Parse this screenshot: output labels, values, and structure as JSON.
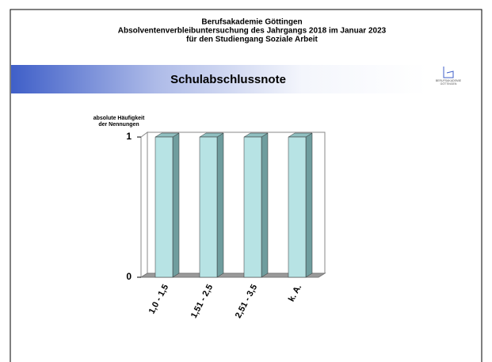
{
  "chart_data": {
    "type": "bar3d",
    "title": [
      "Berufsakademie Göttingen",
      "Absolventenverbleibuntersuchung des Jahrgangs 2018 im Januar 2023",
      "für den Studiengang Soziale Arbeit"
    ],
    "subtitle": "Schulabschlussnote",
    "logo_text": [
      "BERUFSAKADEMIE",
      "GÖTTINGEN"
    ],
    "y_label": [
      "absolute Häufigkeit",
      "der Nennungen"
    ],
    "categories": [
      "1,0 - 1,5",
      "1,51 - 2,5",
      "2,51 - 3,5",
      "k. A."
    ],
    "values": [
      1,
      1,
      1,
      1
    ],
    "color": "#b7e3e4",
    "ylim": [
      0,
      1
    ],
    "yticks": [
      0,
      1
    ]
  }
}
